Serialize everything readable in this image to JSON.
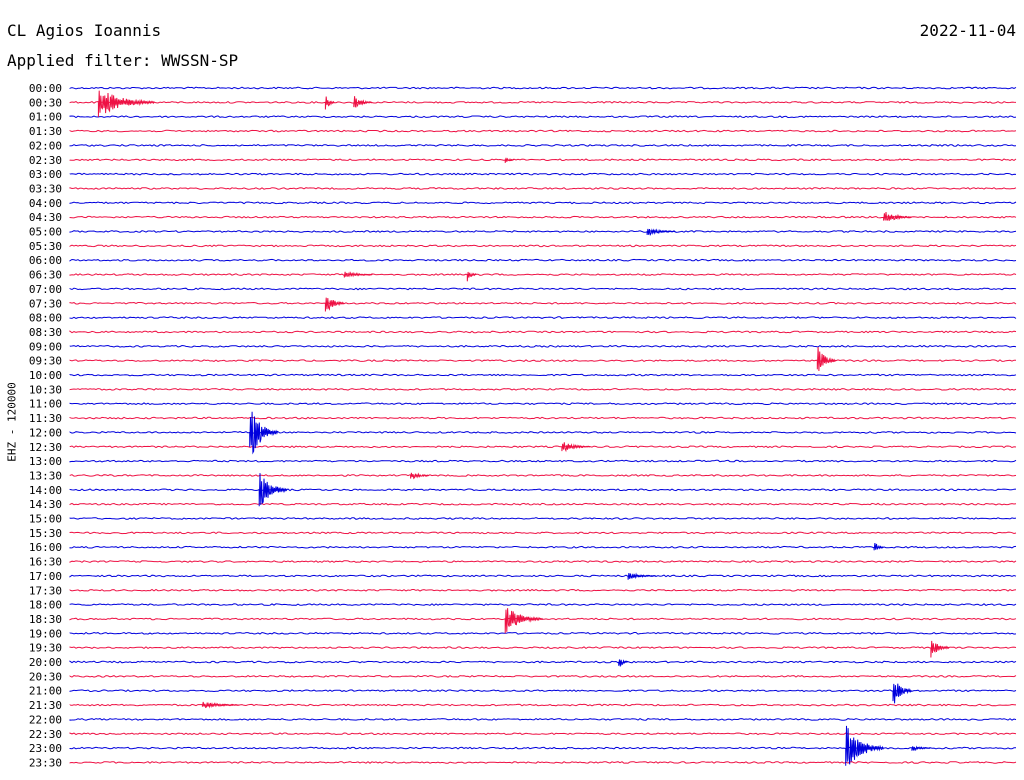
{
  "header": {
    "station": "CL Agios Ioannis",
    "date": "2022-11-04",
    "filter": "Applied filter: WWSSN-SP"
  },
  "colors": {
    "blue": "#0000dd",
    "red": "#ee1144"
  },
  "chart_data": {
    "type": "line",
    "subtype": "helicorder",
    "ylabel": "EHZ - 120000",
    "row_labels": [
      "00:00",
      "00:30",
      "01:00",
      "01:30",
      "02:00",
      "02:30",
      "03:00",
      "03:30",
      "04:00",
      "04:30",
      "05:00",
      "05:30",
      "06:00",
      "06:30",
      "07:00",
      "07:30",
      "08:00",
      "08:30",
      "09:00",
      "09:30",
      "10:00",
      "10:30",
      "11:00",
      "11:30",
      "12:00",
      "12:30",
      "13:00",
      "13:30",
      "14:00",
      "14:30",
      "15:00",
      "15:30",
      "16:00",
      "16:30",
      "17:00",
      "17:30",
      "18:00",
      "18:30",
      "19:00",
      "19:30",
      "20:00",
      "20:30",
      "21:00",
      "21:30",
      "22:00",
      "22:30",
      "23:00",
      "23:30"
    ],
    "series_colors": [
      "blue",
      "red"
    ],
    "events": [
      {
        "row": 1,
        "t": 0.03,
        "amp": 16,
        "len": 0.06
      },
      {
        "row": 1,
        "t": 0.27,
        "amp": 10,
        "len": 0.01
      },
      {
        "row": 1,
        "t": 0.3,
        "amp": 8,
        "len": 0.02
      },
      {
        "row": 5,
        "t": 0.46,
        "amp": 4,
        "len": 0.01
      },
      {
        "row": 9,
        "t": 0.86,
        "amp": 7,
        "len": 0.03
      },
      {
        "row": 10,
        "t": 0.61,
        "amp": 5,
        "len": 0.03
      },
      {
        "row": 13,
        "t": 0.29,
        "amp": 4,
        "len": 0.03
      },
      {
        "row": 13,
        "t": 0.42,
        "amp": 8,
        "len": 0.01
      },
      {
        "row": 15,
        "t": 0.27,
        "amp": 12,
        "len": 0.02
      },
      {
        "row": 19,
        "t": 0.79,
        "amp": 16,
        "len": 0.02
      },
      {
        "row": 24,
        "t": 0.19,
        "amp": 30,
        "len": 0.03
      },
      {
        "row": 25,
        "t": 0.52,
        "amp": 6,
        "len": 0.03
      },
      {
        "row": 27,
        "t": 0.36,
        "amp": 5,
        "len": 0.02
      },
      {
        "row": 28,
        "t": 0.2,
        "amp": 22,
        "len": 0.03
      },
      {
        "row": 32,
        "t": 0.85,
        "amp": 7,
        "len": 0.01
      },
      {
        "row": 34,
        "t": 0.59,
        "amp": 4,
        "len": 0.03
      },
      {
        "row": 37,
        "t": 0.46,
        "amp": 15,
        "len": 0.04
      },
      {
        "row": 39,
        "t": 0.91,
        "amp": 11,
        "len": 0.02
      },
      {
        "row": 40,
        "t": 0.58,
        "amp": 8,
        "len": 0.01
      },
      {
        "row": 42,
        "t": 0.87,
        "amp": 18,
        "len": 0.02
      },
      {
        "row": 43,
        "t": 0.14,
        "amp": 4,
        "len": 0.04
      },
      {
        "row": 46,
        "t": 0.82,
        "amp": 26,
        "len": 0.04
      },
      {
        "row": 46,
        "t": 0.89,
        "amp": 4,
        "len": 0.02
      }
    ]
  }
}
